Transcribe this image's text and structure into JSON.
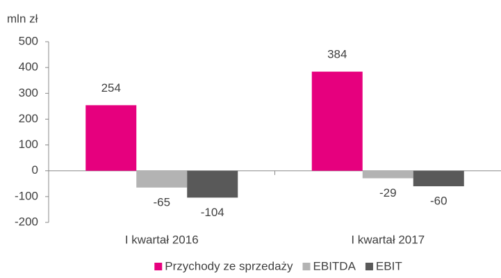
{
  "chart_data": {
    "type": "bar",
    "ylabel": "mln zł",
    "categories": [
      "I kwartał 2016",
      "I kwartał 2017"
    ],
    "series": [
      {
        "name": "Przychody ze sprzedaży",
        "color": "#e6007e",
        "values": [
          254,
          384
        ]
      },
      {
        "name": "EBITDA",
        "color": "#b3b3b3",
        "values": [
          -65,
          -29
        ]
      },
      {
        "name": "EBIT",
        "color": "#595959",
        "values": [
          -104,
          -60
        ]
      }
    ],
    "ylim": [
      -200,
      500
    ],
    "yticks": [
      -200,
      -100,
      0,
      100,
      200,
      300,
      400,
      500
    ],
    "legend": "bottom"
  }
}
